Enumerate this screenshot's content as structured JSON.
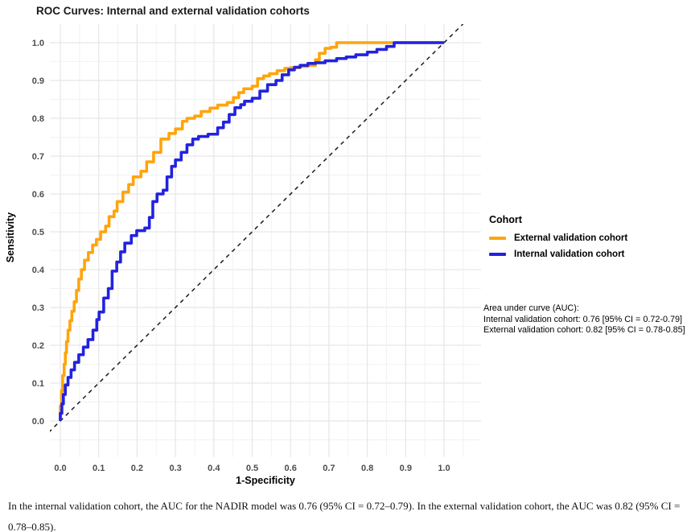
{
  "title": "ROC Curves: Internal and external validation cohorts",
  "chart_data": {
    "type": "line",
    "subtype": "ROC curve (step lines)",
    "title": "ROC Curves: Internal and external validation cohorts",
    "xlabel": "1-Specificity",
    "ylabel": "Sensitivity",
    "xlim": [
      0.0,
      1.0
    ],
    "ylim": [
      0.0,
      1.0
    ],
    "x_ticks": [
      "0.0",
      "0.1",
      "0.2",
      "0.3",
      "0.4",
      "0.5",
      "0.6",
      "0.7",
      "0.8",
      "0.9",
      "1.0"
    ],
    "y_ticks": [
      "0.0",
      "0.1",
      "0.2",
      "0.3",
      "0.4",
      "0.5",
      "0.6",
      "0.7",
      "0.8",
      "0.9",
      "1.0"
    ],
    "grid": "major and minor light-gray gridlines on white background",
    "reference_line": "dashed black diagonal y = x",
    "colors": {
      "external": "#FFA40B",
      "internal": "#2222DF",
      "grid_major": "#E6E6E6",
      "grid_minor": "#F2F2F2",
      "diagonal": "#1a1a1a",
      "tick_text": "#4d4d4d"
    },
    "legend": {
      "title": "Cohort",
      "position": "right",
      "entries": [
        {
          "label": "External validation cohort",
          "color": "#FFA40B"
        },
        {
          "label": "Internal validation cohort",
          "color": "#2222DF"
        }
      ]
    },
    "series": [
      {
        "name": "External validation cohort",
        "color": "#FFA40B",
        "auc": 0.82,
        "auc_ci": "0.78-0.85",
        "points": [
          [
            0,
            0
          ],
          [
            0.003,
            0.04
          ],
          [
            0.006,
            0.08
          ],
          [
            0.01,
            0.12
          ],
          [
            0.013,
            0.15
          ],
          [
            0.016,
            0.18
          ],
          [
            0.02,
            0.21
          ],
          [
            0.025,
            0.24
          ],
          [
            0.03,
            0.265
          ],
          [
            0.036,
            0.29
          ],
          [
            0.042,
            0.315
          ],
          [
            0.048,
            0.345
          ],
          [
            0.055,
            0.375
          ],
          [
            0.063,
            0.4
          ],
          [
            0.073,
            0.425
          ],
          [
            0.084,
            0.445
          ],
          [
            0.094,
            0.465
          ],
          [
            0.105,
            0.48
          ],
          [
            0.118,
            0.5
          ],
          [
            0.127,
            0.515
          ],
          [
            0.14,
            0.54
          ],
          [
            0.148,
            0.555
          ],
          [
            0.163,
            0.58
          ],
          [
            0.178,
            0.605
          ],
          [
            0.19,
            0.625
          ],
          [
            0.21,
            0.645
          ],
          [
            0.225,
            0.66
          ],
          [
            0.243,
            0.685
          ],
          [
            0.262,
            0.71
          ],
          [
            0.283,
            0.745
          ],
          [
            0.3,
            0.76
          ],
          [
            0.318,
            0.772
          ],
          [
            0.33,
            0.792
          ],
          [
            0.35,
            0.8
          ],
          [
            0.367,
            0.806
          ],
          [
            0.39,
            0.818
          ],
          [
            0.41,
            0.827
          ],
          [
            0.435,
            0.835
          ],
          [
            0.451,
            0.842
          ],
          [
            0.465,
            0.855
          ],
          [
            0.478,
            0.868
          ],
          [
            0.5,
            0.878
          ],
          [
            0.514,
            0.885
          ],
          [
            0.53,
            0.905
          ],
          [
            0.545,
            0.912
          ],
          [
            0.565,
            0.918
          ],
          [
            0.585,
            0.926
          ],
          [
            0.6,
            0.932
          ],
          [
            0.625,
            0.934
          ],
          [
            0.645,
            0.937
          ],
          [
            0.665,
            0.94
          ],
          [
            0.675,
            0.955
          ],
          [
            0.69,
            0.972
          ],
          [
            0.705,
            0.985
          ],
          [
            0.72,
            0.988
          ],
          [
            0.735,
            1.0
          ],
          [
            1.0,
            1.0
          ]
        ]
      },
      {
        "name": "Internal validation cohort",
        "color": "#2222DF",
        "auc": 0.76,
        "auc_ci": "0.72-0.79",
        "points": [
          [
            0,
            0
          ],
          [
            0.004,
            0.02
          ],
          [
            0.008,
            0.045
          ],
          [
            0.013,
            0.07
          ],
          [
            0.02,
            0.095
          ],
          [
            0.028,
            0.115
          ],
          [
            0.037,
            0.135
          ],
          [
            0.048,
            0.155
          ],
          [
            0.06,
            0.175
          ],
          [
            0.072,
            0.195
          ],
          [
            0.085,
            0.215
          ],
          [
            0.095,
            0.24
          ],
          [
            0.101,
            0.268
          ],
          [
            0.113,
            0.288
          ],
          [
            0.125,
            0.325
          ],
          [
            0.135,
            0.35
          ],
          [
            0.147,
            0.396
          ],
          [
            0.157,
            0.42
          ],
          [
            0.168,
            0.447
          ],
          [
            0.185,
            0.47
          ],
          [
            0.199,
            0.49
          ],
          [
            0.22,
            0.503
          ],
          [
            0.232,
            0.51
          ],
          [
            0.241,
            0.538
          ],
          [
            0.252,
            0.58
          ],
          [
            0.268,
            0.6
          ],
          [
            0.278,
            0.61
          ],
          [
            0.29,
            0.645
          ],
          [
            0.3,
            0.673
          ],
          [
            0.315,
            0.69
          ],
          [
            0.33,
            0.71
          ],
          [
            0.345,
            0.73
          ],
          [
            0.36,
            0.745
          ],
          [
            0.385,
            0.752
          ],
          [
            0.41,
            0.758
          ],
          [
            0.425,
            0.775
          ],
          [
            0.44,
            0.79
          ],
          [
            0.455,
            0.81
          ],
          [
            0.47,
            0.828
          ],
          [
            0.48,
            0.836
          ],
          [
            0.5,
            0.845
          ],
          [
            0.52,
            0.853
          ],
          [
            0.54,
            0.872
          ],
          [
            0.562,
            0.889
          ],
          [
            0.578,
            0.9
          ],
          [
            0.595,
            0.915
          ],
          [
            0.61,
            0.928
          ],
          [
            0.625,
            0.935
          ],
          [
            0.645,
            0.94
          ],
          [
            0.665,
            0.945
          ],
          [
            0.69,
            0.947
          ],
          [
            0.72,
            0.952
          ],
          [
            0.745,
            0.958
          ],
          [
            0.77,
            0.962
          ],
          [
            0.8,
            0.968
          ],
          [
            0.825,
            0.975
          ],
          [
            0.85,
            0.982
          ],
          [
            0.87,
            0.99
          ],
          [
            0.895,
            1.0
          ],
          [
            1.0,
            1.0
          ]
        ]
      }
    ]
  },
  "annotation": {
    "lines": [
      "Area under curve (AUC):",
      "Internal validation cohort: 0.76 [95% CI = 0.72-0.79]",
      "External validation cohort: 0.82 [95% CI = 0.78-0.85]"
    ]
  },
  "caption": "In the internal validation cohort, the AUC for the NADIR model was 0.76 (95% CI = 0.72–0.79). In the external validation cohort, the AUC was 0.82 (95% CI = 0.78–0.85)."
}
